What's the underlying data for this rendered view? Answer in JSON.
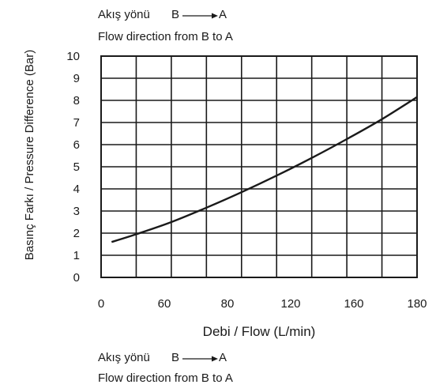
{
  "chart_data": {
    "type": "line",
    "title": "",
    "annotations": {
      "top_line1": "Akış yönü",
      "top_from": "B",
      "top_to": "A",
      "top_line2": "Flow direction from B to A",
      "bottom_line1": "Akış yönü",
      "bottom_from": "B",
      "bottom_to": "A",
      "bottom_line2": "Flow direction from B to A"
    },
    "xlabel": "Debi / Flow (L/min)",
    "ylabel": "Basınç Farkı / Pressure Difference (Bar)",
    "xlim": [
      0,
      180
    ],
    "ylim": [
      0,
      10
    ],
    "x_ticks": [
      "0",
      "60",
      "80",
      "120",
      "160",
      "180"
    ],
    "y_ticks": [
      "0",
      "1",
      "2",
      "3",
      "4",
      "5",
      "6",
      "7",
      "8",
      "9",
      "10"
    ],
    "grid": true,
    "series": [
      {
        "x": [
          6,
          20,
          40,
          60,
          80,
          100,
          120,
          140,
          160,
          180
        ],
        "y": [
          1.6,
          1.95,
          2.5,
          3.15,
          3.85,
          4.6,
          5.4,
          6.25,
          7.15,
          8.15
        ]
      }
    ],
    "colors": {
      "line": "#1a1a1a",
      "grid": "#1a1a1a"
    }
  }
}
